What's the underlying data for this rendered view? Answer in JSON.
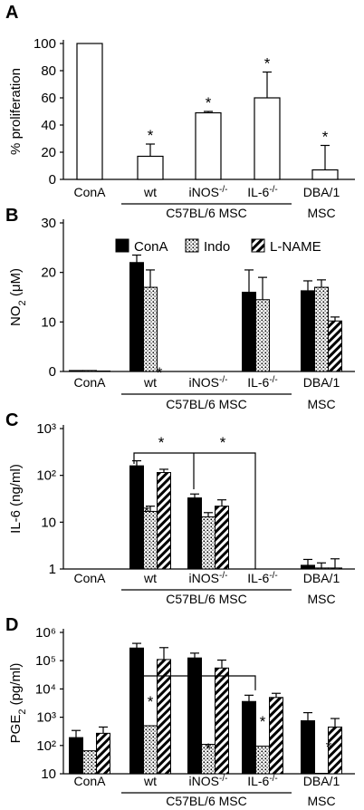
{
  "chart_data": [
    {
      "type": "bar",
      "panel": "A",
      "ylabel": "% proliferation",
      "ylim": [
        0,
        100
      ],
      "yticks": [
        "0",
        "20",
        "40",
        "60",
        "80",
        "100"
      ],
      "categories": [
        "ConA",
        "wt",
        "iNOS-/-",
        "IL-6-/-",
        "DBA/1"
      ],
      "series": [
        {
          "values": [
            100,
            17,
            49,
            60,
            7
          ],
          "errors": [
            0,
            9,
            1,
            19,
            18
          ],
          "significant": [
            false,
            true,
            true,
            true,
            true
          ]
        }
      ],
      "group_label": "C57BL/6 MSC",
      "extra_label": "MSC"
    },
    {
      "type": "bar",
      "panel": "B",
      "ylabel": "NO2 (μM)",
      "ylim": [
        0,
        30
      ],
      "yticks": [
        "0",
        "10",
        "20",
        "30"
      ],
      "categories": [
        "ConA",
        "wt",
        "iNOS-/-",
        "IL-6-/-",
        "DBA/1"
      ],
      "legend": [
        "ConA",
        "Indo",
        "L-NAME"
      ],
      "series": [
        {
          "name": "ConA",
          "values": [
            0.2,
            22,
            0,
            16,
            16.3
          ],
          "errors": [
            0,
            1.5,
            0,
            4.5,
            2
          ]
        },
        {
          "name": "Indo",
          "values": [
            0.2,
            17,
            0,
            14.5,
            17
          ],
          "errors": [
            0,
            3.5,
            0,
            4.5,
            1.5
          ]
        },
        {
          "name": "L-NAME",
          "values": [
            0.1,
            0,
            0,
            0,
            10.2
          ],
          "errors": [
            0,
            0,
            0,
            0,
            0.8
          ]
        }
      ],
      "group_label": "C57BL/6 MSC",
      "extra_label": "MSC"
    },
    {
      "type": "bar",
      "panel": "C",
      "ylabel": "IL-6 (ng/ml)",
      "yscale": "log",
      "ylim": [
        1,
        1000
      ],
      "yticks": [
        "1",
        "10",
        "10²",
        "10³"
      ],
      "categories": [
        "ConA",
        "wt",
        "iNOS-/-",
        "IL-6-/-",
        "DBA/1"
      ],
      "series": [
        {
          "name": "ConA",
          "values": [
            0,
            160,
            33,
            0,
            1.2
          ],
          "errors": [
            0,
            45,
            7,
            0,
            0.4
          ]
        },
        {
          "name": "Indo",
          "values": [
            0,
            17,
            13,
            0,
            1.05
          ],
          "errors": [
            0,
            5,
            3,
            0,
            0.3
          ]
        },
        {
          "name": "L-NAME",
          "values": [
            0,
            115,
            22,
            0,
            1.05
          ],
          "errors": [
            0,
            20,
            8,
            0,
            0.6
          ]
        }
      ],
      "group_label": "C57BL/6 MSC",
      "extra_label": "MSC"
    },
    {
      "type": "bar",
      "panel": "D",
      "ylabel": "PGE2 (pg/ml)",
      "yscale": "log",
      "ylim": [
        10,
        1000000
      ],
      "yticks": [
        "10",
        "10²",
        "10³",
        "10⁴",
        "10⁵",
        "10⁶"
      ],
      "categories": [
        "ConA",
        "wt",
        "iNOS-/-",
        "IL-6-/-",
        "DBA/1"
      ],
      "series": [
        {
          "name": "ConA",
          "values": [
            190,
            280000,
            125000,
            3600,
            750
          ],
          "errors": [
            150,
            130000,
            60000,
            2400,
            700
          ]
        },
        {
          "name": "Indo",
          "values": [
            65,
            500,
            110,
            95,
            10
          ],
          "errors": [
            0,
            0,
            0,
            0,
            0
          ]
        },
        {
          "name": "L-NAME",
          "values": [
            270,
            110000,
            55000,
            5000,
            450
          ],
          "errors": [
            180,
            180000,
            50000,
            2000,
            450
          ]
        }
      ],
      "group_label": "C57BL/6 MSC",
      "extra_label": "MSC"
    }
  ]
}
